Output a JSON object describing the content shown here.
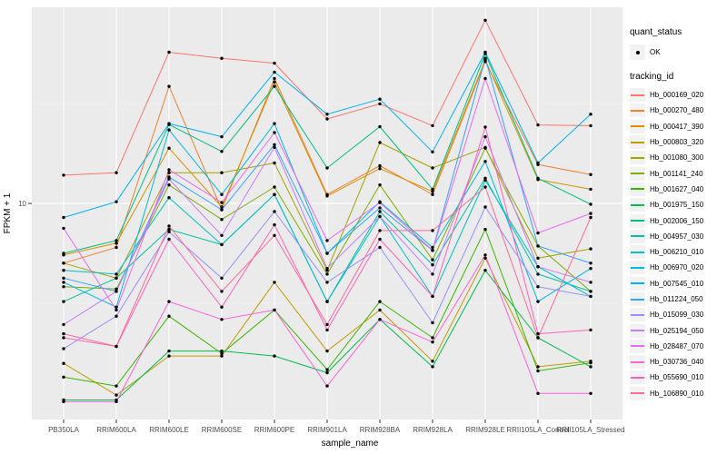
{
  "chart_data": {
    "type": "line",
    "title": "",
    "xlabel": "sample_name",
    "ylabel": "FPKM + 1",
    "y_scale": "log10",
    "y_tick_labels": [
      "10"
    ],
    "y_breaks": [
      10
    ],
    "ylim_log": [
      -0.09,
      1.99
    ],
    "grid": "white major gridlines on gray panel",
    "legend_position": "right",
    "x_categories": [
      "PB350LA",
      "RRIM600LA",
      "RRIM600LE",
      "RRIM600SE",
      "RRIM600PE",
      "RRIM901LA",
      "RRIM928BA",
      "RRIM928LA",
      "RRIM928LE",
      "RRII105LA_Control",
      "RRII105LA_Stressed"
    ],
    "colors": {
      "panel_bg": "#EBEBEB",
      "grid": "#FFFFFF",
      "point": "#000000",
      "tick_text": "#4D4D4D",
      "axis_title": "#000000",
      "key_bg": "#F2F2F2"
    },
    "legend": {
      "quant_status": {
        "title": "quant_status",
        "items": [
          {
            "label": "OK",
            "marker": "black-point"
          }
        ]
      },
      "tracking_id": {
        "title": "tracking_id"
      }
    },
    "series": [
      {
        "name": "Hb_000169_020",
        "color": "#F8766D",
        "values": [
          13.9,
          14.3,
          58,
          54,
          51,
          26.7,
          31.8,
          24.7,
          84,
          24.9,
          24.7
        ]
      },
      {
        "name": "Hb_000270_480",
        "color": "#EA8331",
        "values": [
          5.0,
          6.0,
          39,
          9.3,
          42.7,
          11.1,
          15.5,
          11.1,
          52,
          15.7,
          14.0
        ]
      },
      {
        "name": "Hb_000417_390",
        "color": "#D89000",
        "values": [
          5.5,
          6.3,
          19,
          9.6,
          41,
          10.9,
          15.0,
          11.5,
          53,
          13.2,
          11.8
        ]
      },
      {
        "name": "Hb_000803_320",
        "color": "#C09B00",
        "values": [
          1.56,
          1.08,
          1.7,
          1.7,
          4.0,
          1.8,
          2.9,
          1.6,
          5.3,
          1.5,
          1.6
        ]
      },
      {
        "name": "Hb_001080_300",
        "color": "#A3A500",
        "values": [
          5.0,
          4.2,
          14.3,
          14.3,
          16,
          4.6,
          20.3,
          15.1,
          19.2,
          5.3,
          5.9
        ]
      },
      {
        "name": "Hb_001141_240",
        "color": "#7CAE00",
        "values": [
          3.8,
          3.7,
          12.4,
          8.3,
          12.1,
          4.4,
          12.4,
          5.2,
          19,
          6.1,
          3.6
        ]
      },
      {
        "name": "Hb_001627_040",
        "color": "#39B600",
        "values": [
          1.33,
          1.2,
          2.7,
          1.75,
          2.9,
          1.45,
          3.2,
          2.1,
          7.4,
          1.43,
          1.57
        ]
      },
      {
        "name": "Hb_001975_150",
        "color": "#00BB4E",
        "values": [
          1.02,
          1.02,
          1.8,
          1.8,
          1.7,
          1.4,
          2.6,
          1.5,
          4.6,
          2.1,
          1.5
        ]
      },
      {
        "name": "Hb_002006_150",
        "color": "#00BF7D",
        "values": [
          5.6,
          6.5,
          25,
          18.3,
          39,
          15.1,
          24.4,
          11.8,
          57,
          13.4,
          9.9
        ]
      },
      {
        "name": "Hb_004957_030",
        "color": "#00C1A3",
        "values": [
          3.2,
          4.2,
          7.4,
          6.2,
          11.1,
          3.2,
          9.1,
          4.9,
          13.4,
          4.4,
          3.6
        ]
      },
      {
        "name": "Hb_006210_010",
        "color": "#00BFC4",
        "values": [
          4.6,
          4.4,
          10.7,
          6.2,
          11.1,
          3.2,
          8.6,
          3.4,
          13.1,
          4.8,
          3.4
        ]
      },
      {
        "name": "Hb_006970_020",
        "color": "#00BAE0",
        "values": [
          4.0,
          3.0,
          23.5,
          11.1,
          25.3,
          5.6,
          10.2,
          6.0,
          16.3,
          3.2,
          4.7
        ]
      },
      {
        "name": "Hb_007545_010",
        "color": "#00B0F6",
        "values": [
          8.5,
          10.2,
          25.3,
          21.7,
          46,
          28.2,
          33.6,
          18.2,
          58,
          16,
          28.2
        ]
      },
      {
        "name": "Hb_011224_050",
        "color": "#35A2FF",
        "values": [
          4.2,
          3.6,
          13.6,
          9.3,
          19.8,
          5.6,
          9.5,
          5.8,
          54,
          6.1,
          5.0
        ]
      },
      {
        "name": "Hb_015099_030",
        "color": "#9590FF",
        "values": [
          1.85,
          2.7,
          7.2,
          4.2,
          9.1,
          4.0,
          6.0,
          2.5,
          9.6,
          3.8,
          3.4
        ]
      },
      {
        "name": "Hb_025194_050",
        "color": "#C77CFF",
        "values": [
          2.45,
          3.6,
          13.3,
          6.9,
          19.2,
          4.7,
          8.6,
          4.4,
          21.7,
          4.8,
          4.0
        ]
      },
      {
        "name": "Hb_028487_070",
        "color": "#E76BF3",
        "values": [
          7.5,
          2.9,
          14.8,
          10.1,
          22.8,
          6.5,
          10.1,
          5.8,
          42.7,
          7.1,
          8.9
        ]
      },
      {
        "name": "Hb_030736_040",
        "color": "#FA62DB",
        "values": [
          1.0,
          1.0,
          3.2,
          2.6,
          2.9,
          1.2,
          2.6,
          2.0,
          5.5,
          1.1,
          1.1
        ]
      },
      {
        "name": "Hb_055690_010",
        "color": "#FF62BC",
        "values": [
          2.1,
          1.9,
          6.6,
          3.0,
          7.8,
          2.3,
          6.6,
          3.4,
          24.3,
          2.2,
          2.3
        ]
      },
      {
        "name": "Hb_106890_010",
        "color": "#FF6A98",
        "values": [
          2.2,
          1.9,
          7.7,
          3.6,
          6.9,
          2.45,
          7.3,
          7.3,
          12.1,
          2.1,
          8.5
        ]
      }
    ]
  }
}
